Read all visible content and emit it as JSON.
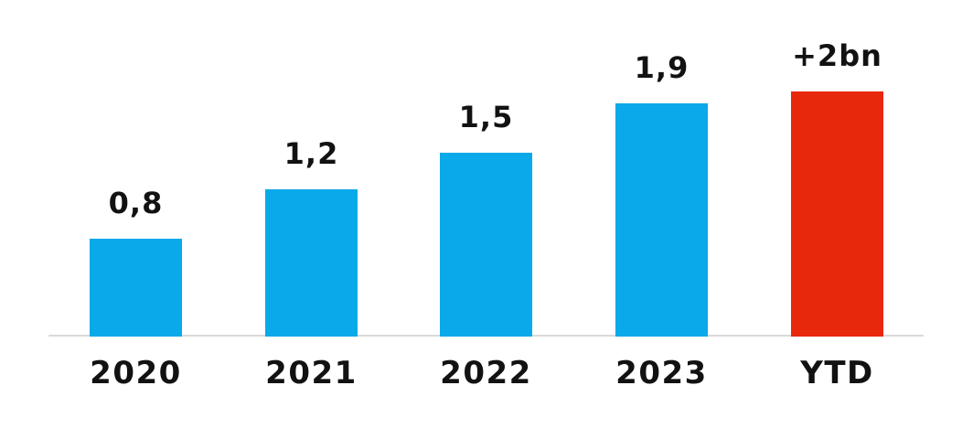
{
  "chart_data": {
    "type": "bar",
    "title": "",
    "xlabel": "",
    "ylabel": "",
    "categories": [
      "2020",
      "2021",
      "2022",
      "2023",
      "YTD"
    ],
    "values": [
      0.8,
      1.2,
      1.5,
      1.9,
      2.0
    ],
    "value_labels": [
      "0,8",
      "1,2",
      "1,5",
      "1,9",
      "+2bn"
    ],
    "bar_colors": [
      "#0AA9EA",
      "#0AA9EA",
      "#0AA9EA",
      "#0AA9EA",
      "#E8280D"
    ],
    "highlight_category": "YTD",
    "ylim": [
      0,
      2.2
    ],
    "grid": false,
    "legend": false,
    "y_axis_visible": false,
    "x_axis_line_visible": true,
    "colors": {
      "bar_blue": "#0AA9EA",
      "bar_red": "#E8280D",
      "axis_line": "#D9D9D9",
      "label_text": "#121212",
      "background": "#FFFFFF"
    }
  }
}
